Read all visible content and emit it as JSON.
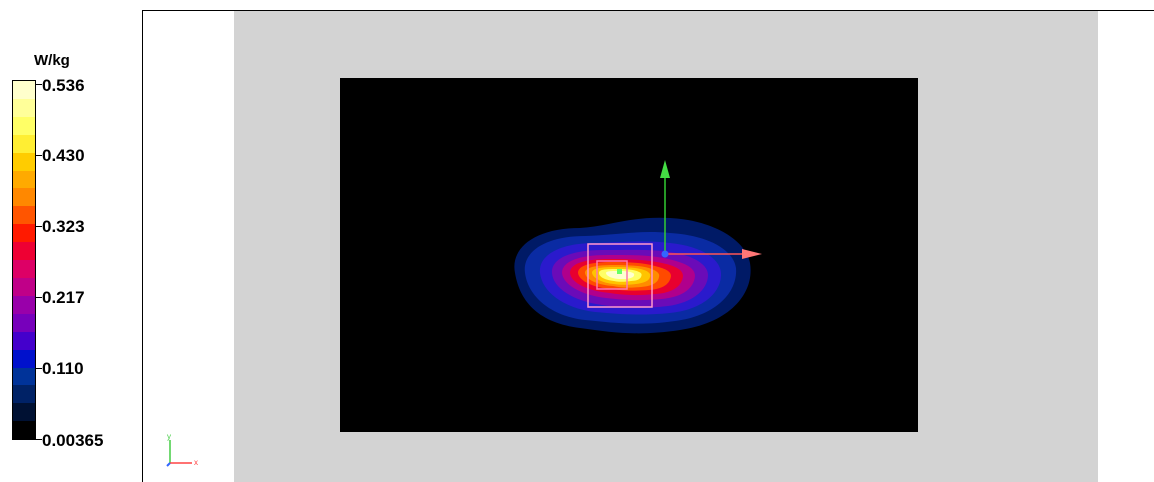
{
  "colorbar": {
    "unit": "W/kg",
    "labels": [
      "0.536",
      "0.430",
      "0.323",
      "0.217",
      "0.110",
      "0.00365"
    ],
    "max": 0.536,
    "min": 0.00365,
    "colors_top_to_bottom": [
      "#ffffcc",
      "#ffff99",
      "#ffff66",
      "#ffee33",
      "#ffcc00",
      "#ffaa00",
      "#ff8800",
      "#ff5500",
      "#ff1a00",
      "#ee0033",
      "#dd0066",
      "#c00088",
      "#9900aa",
      "#7700bb",
      "#4400cc",
      "#0011cc",
      "#003399",
      "#002266",
      "#001133",
      "#000000"
    ]
  },
  "axes_indicator": {
    "x_label": "x",
    "y_label": "y",
    "x_color": "#ff4444",
    "y_color": "#44cc44",
    "z_color": "#3366ff"
  },
  "scene": {
    "viewport_background": "#d3d3d3",
    "plot_background": "#000000",
    "peak_marker_color": "#66ff66",
    "frame_color": "#ff99cc"
  }
}
